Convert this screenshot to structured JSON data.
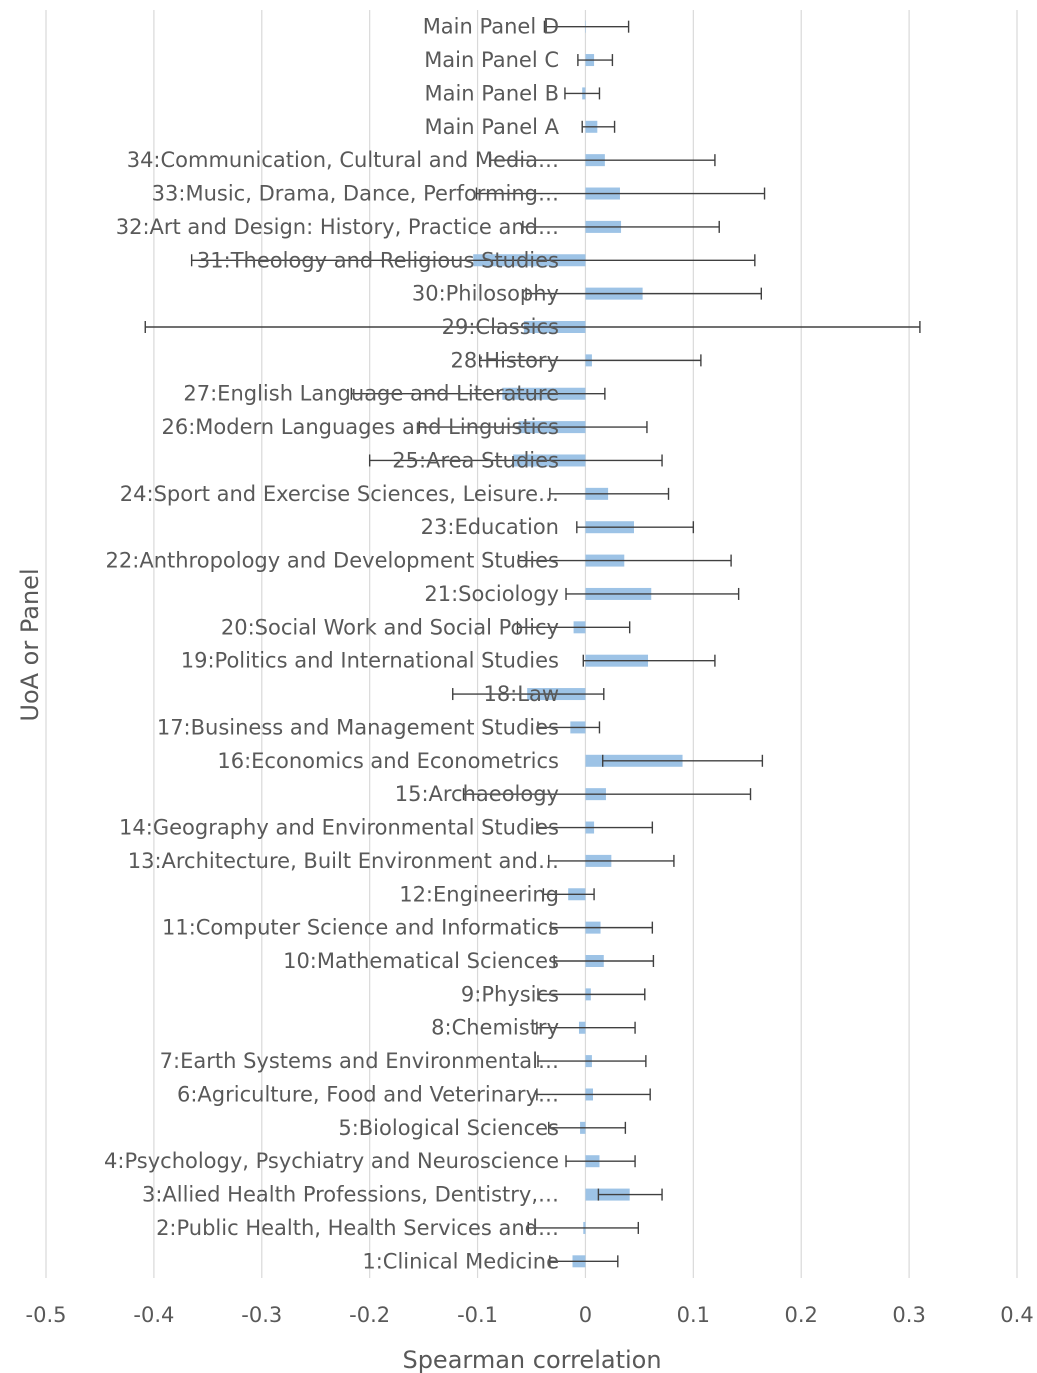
{
  "chart_data": {
    "type": "bar",
    "orientation": "horizontal",
    "xlabel": "Spearman correlation",
    "ylabel": "UoA or Panel",
    "xlim": [
      -0.5,
      0.4
    ],
    "xticks": [
      "-0.5",
      "-0.4",
      "-0.3",
      "-0.2",
      "-0.1",
      "0",
      "0.1",
      "0.2",
      "0.3",
      "0.4"
    ],
    "grid": "vertical",
    "colors": {
      "bar": "#9dc3e6",
      "grid": "#d9d9d9",
      "error": "#404040",
      "text": "#595959"
    },
    "categories": [
      "Main Panel D",
      "Main Panel C",
      "Main Panel B",
      "Main Panel A",
      "34:Communication, Cultural and Media…",
      "33:Music, Drama, Dance, Performing…",
      "32:Art and Design: History, Practice and…",
      "31:Theology and Religious Studies",
      "30:Philosophy",
      "29:Classics",
      "28:History",
      "27:English Language and Literature",
      "26:Modern Languages and Linguistics",
      "25:Area Studies",
      "24:Sport and Exercise Sciences, Leisure…",
      "23:Education",
      "22:Anthropology and Development Studies",
      "21:Sociology",
      "20:Social Work and Social Policy",
      "19:Politics and International Studies",
      "18:Law",
      "17:Business and Management Studies",
      "16:Economics and Econometrics",
      "15:Archaeology",
      "14:Geography and Environmental Studies",
      "13:Architecture, Built Environment and…",
      "12:Engineering",
      "11:Computer Science and Informatics",
      "10:Mathematical Sciences",
      "9:Physics",
      "8:Chemistry",
      "7:Earth Systems and Environmental…",
      "6:Agriculture, Food and Veterinary…",
      "5:Biological Sciences",
      "4:Psychology, Psychiatry and Neuroscience",
      "3:Allied Health Professions, Dentistry,…",
      "2:Public Health, Health Services and…",
      "1:Clinical Medicine"
    ],
    "values": [
      0.0,
      0.008,
      -0.003,
      0.011,
      0.018,
      0.032,
      0.033,
      -0.104,
      0.053,
      -0.057,
      0.006,
      -0.077,
      -0.062,
      -0.067,
      0.021,
      0.045,
      0.036,
      0.061,
      -0.011,
      0.058,
      -0.054,
      -0.014,
      0.09,
      0.019,
      0.008,
      0.024,
      -0.016,
      0.014,
      0.017,
      0.005,
      -0.006,
      0.006,
      0.007,
      -0.005,
      0.013,
      0.041,
      -0.002,
      -0.012
    ],
    "error_low": [
      -0.038,
      -0.007,
      -0.019,
      -0.003,
      -0.088,
      -0.101,
      -0.058,
      -0.365,
      -0.055,
      -0.408,
      -0.098,
      -0.217,
      -0.154,
      -0.2,
      -0.033,
      -0.008,
      -0.062,
      -0.018,
      -0.063,
      -0.002,
      -0.123,
      -0.044,
      0.016,
      -0.113,
      -0.045,
      -0.034,
      -0.039,
      -0.032,
      -0.029,
      -0.044,
      -0.045,
      -0.044,
      -0.045,
      -0.034,
      -0.018,
      0.012,
      -0.053,
      -0.033
    ],
    "error_high": [
      0.04,
      0.025,
      0.013,
      0.027,
      0.12,
      0.166,
      0.124,
      0.157,
      0.163,
      0.31,
      0.107,
      0.018,
      0.057,
      0.071,
      0.077,
      0.1,
      0.135,
      0.142,
      0.041,
      0.12,
      0.017,
      0.013,
      0.164,
      0.153,
      0.062,
      0.082,
      0.008,
      0.062,
      0.063,
      0.055,
      0.046,
      0.056,
      0.06,
      0.037,
      0.046,
      0.071,
      0.049,
      0.03
    ]
  }
}
